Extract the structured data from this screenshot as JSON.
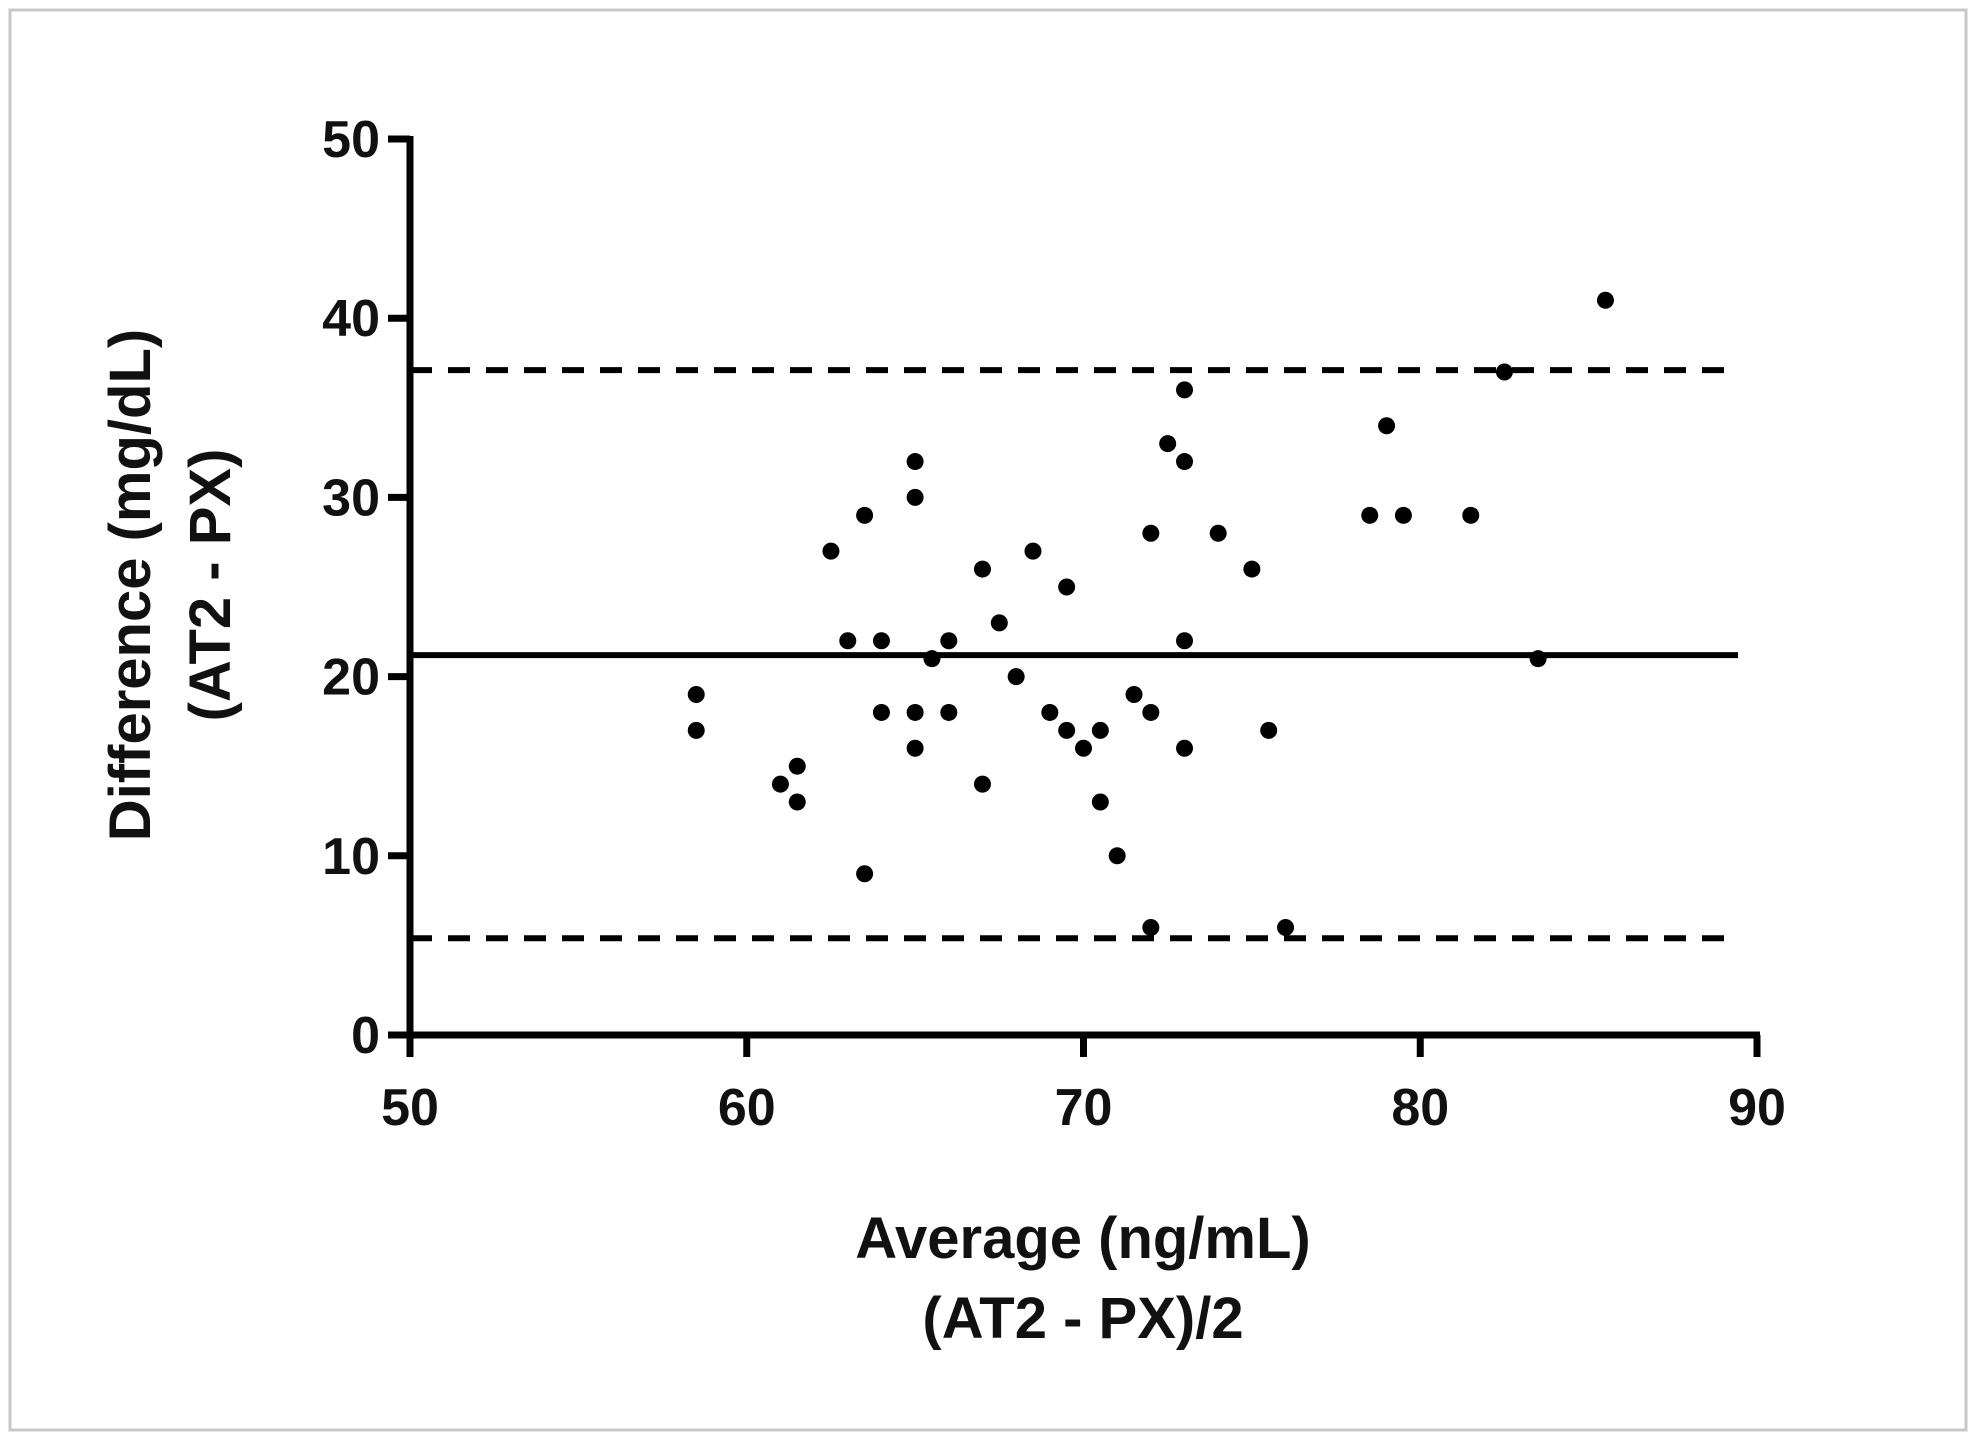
{
  "chart_data": {
    "type": "scatter",
    "xlabel": [
      "Average (ng/mL)",
      "(AT2 - PX)/2"
    ],
    "ylabel": [
      "Difference (mg/dL)",
      "(AT2 - PX)"
    ],
    "xlim": [
      50,
      90
    ],
    "ylim": [
      0,
      50
    ],
    "xticks": [
      "50",
      "60",
      "70",
      "80",
      "90"
    ],
    "yticks": [
      "0",
      "10",
      "20",
      "30",
      "40",
      "50"
    ],
    "grid": false,
    "reference_lines": [
      {
        "y": 21.2,
        "style": "solid"
      },
      {
        "y": 37.1,
        "style": "dashed"
      },
      {
        "y": 5.4,
        "style": "dashed"
      }
    ],
    "points": [
      [
        58.5,
        19
      ],
      [
        58.5,
        17
      ],
      [
        61,
        14
      ],
      [
        61.5,
        15
      ],
      [
        61.5,
        13
      ],
      [
        62.5,
        27
      ],
      [
        63,
        22
      ],
      [
        63.5,
        29
      ],
      [
        63.5,
        9
      ],
      [
        64,
        22
      ],
      [
        64,
        18
      ],
      [
        65,
        32
      ],
      [
        65,
        30
      ],
      [
        65,
        18
      ],
      [
        65,
        16
      ],
      [
        65.5,
        21
      ],
      [
        66,
        22
      ],
      [
        66,
        18
      ],
      [
        67,
        26
      ],
      [
        67,
        14
      ],
      [
        67.5,
        23
      ],
      [
        68,
        20
      ],
      [
        68.5,
        27
      ],
      [
        69,
        18
      ],
      [
        69.5,
        25
      ],
      [
        69.5,
        17
      ],
      [
        70,
        16
      ],
      [
        70.5,
        17
      ],
      [
        70.5,
        13
      ],
      [
        71,
        10
      ],
      [
        71.5,
        19
      ],
      [
        72,
        28
      ],
      [
        72,
        18
      ],
      [
        72,
        6
      ],
      [
        72.5,
        33
      ],
      [
        73,
        36
      ],
      [
        73,
        32
      ],
      [
        73,
        22
      ],
      [
        73,
        16
      ],
      [
        74,
        28
      ],
      [
        75,
        26
      ],
      [
        75.5,
        17
      ],
      [
        76,
        6
      ],
      [
        78.5,
        29
      ],
      [
        79,
        34
      ],
      [
        79.5,
        29
      ],
      [
        81.5,
        29
      ],
      [
        82.5,
        37
      ],
      [
        83.5,
        21
      ],
      [
        85.5,
        41
      ]
    ],
    "colors": {
      "points": "#000000",
      "lines": "#000000",
      "frame": "#c8c8c8"
    }
  }
}
